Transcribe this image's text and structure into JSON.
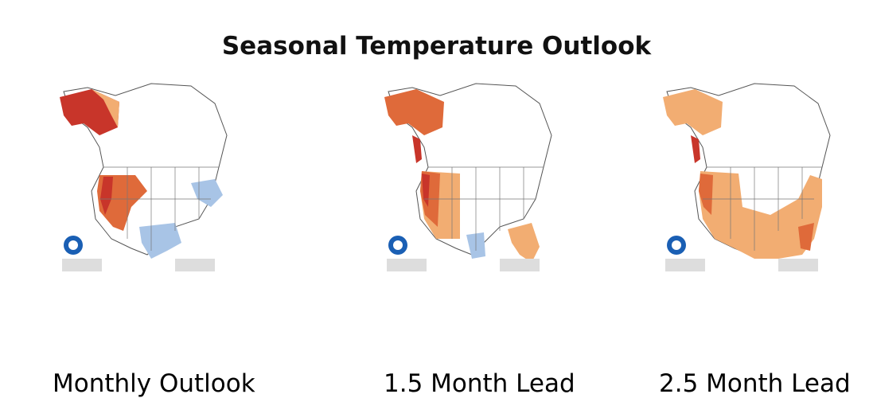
{
  "title": "Seasonal Temperature Outlook",
  "colors": {
    "above_dark": "#c8352a",
    "above_mid": "#df6a3a",
    "above_light": "#f2ad72",
    "below": "#a8c4e6",
    "land": "#ffffff",
    "border": "#555555"
  },
  "maps": [
    {
      "caption": "Monthly Outlook"
    },
    {
      "caption": "1.5 Month Lead"
    },
    {
      "caption": "2.5 Month Lead"
    }
  ]
}
